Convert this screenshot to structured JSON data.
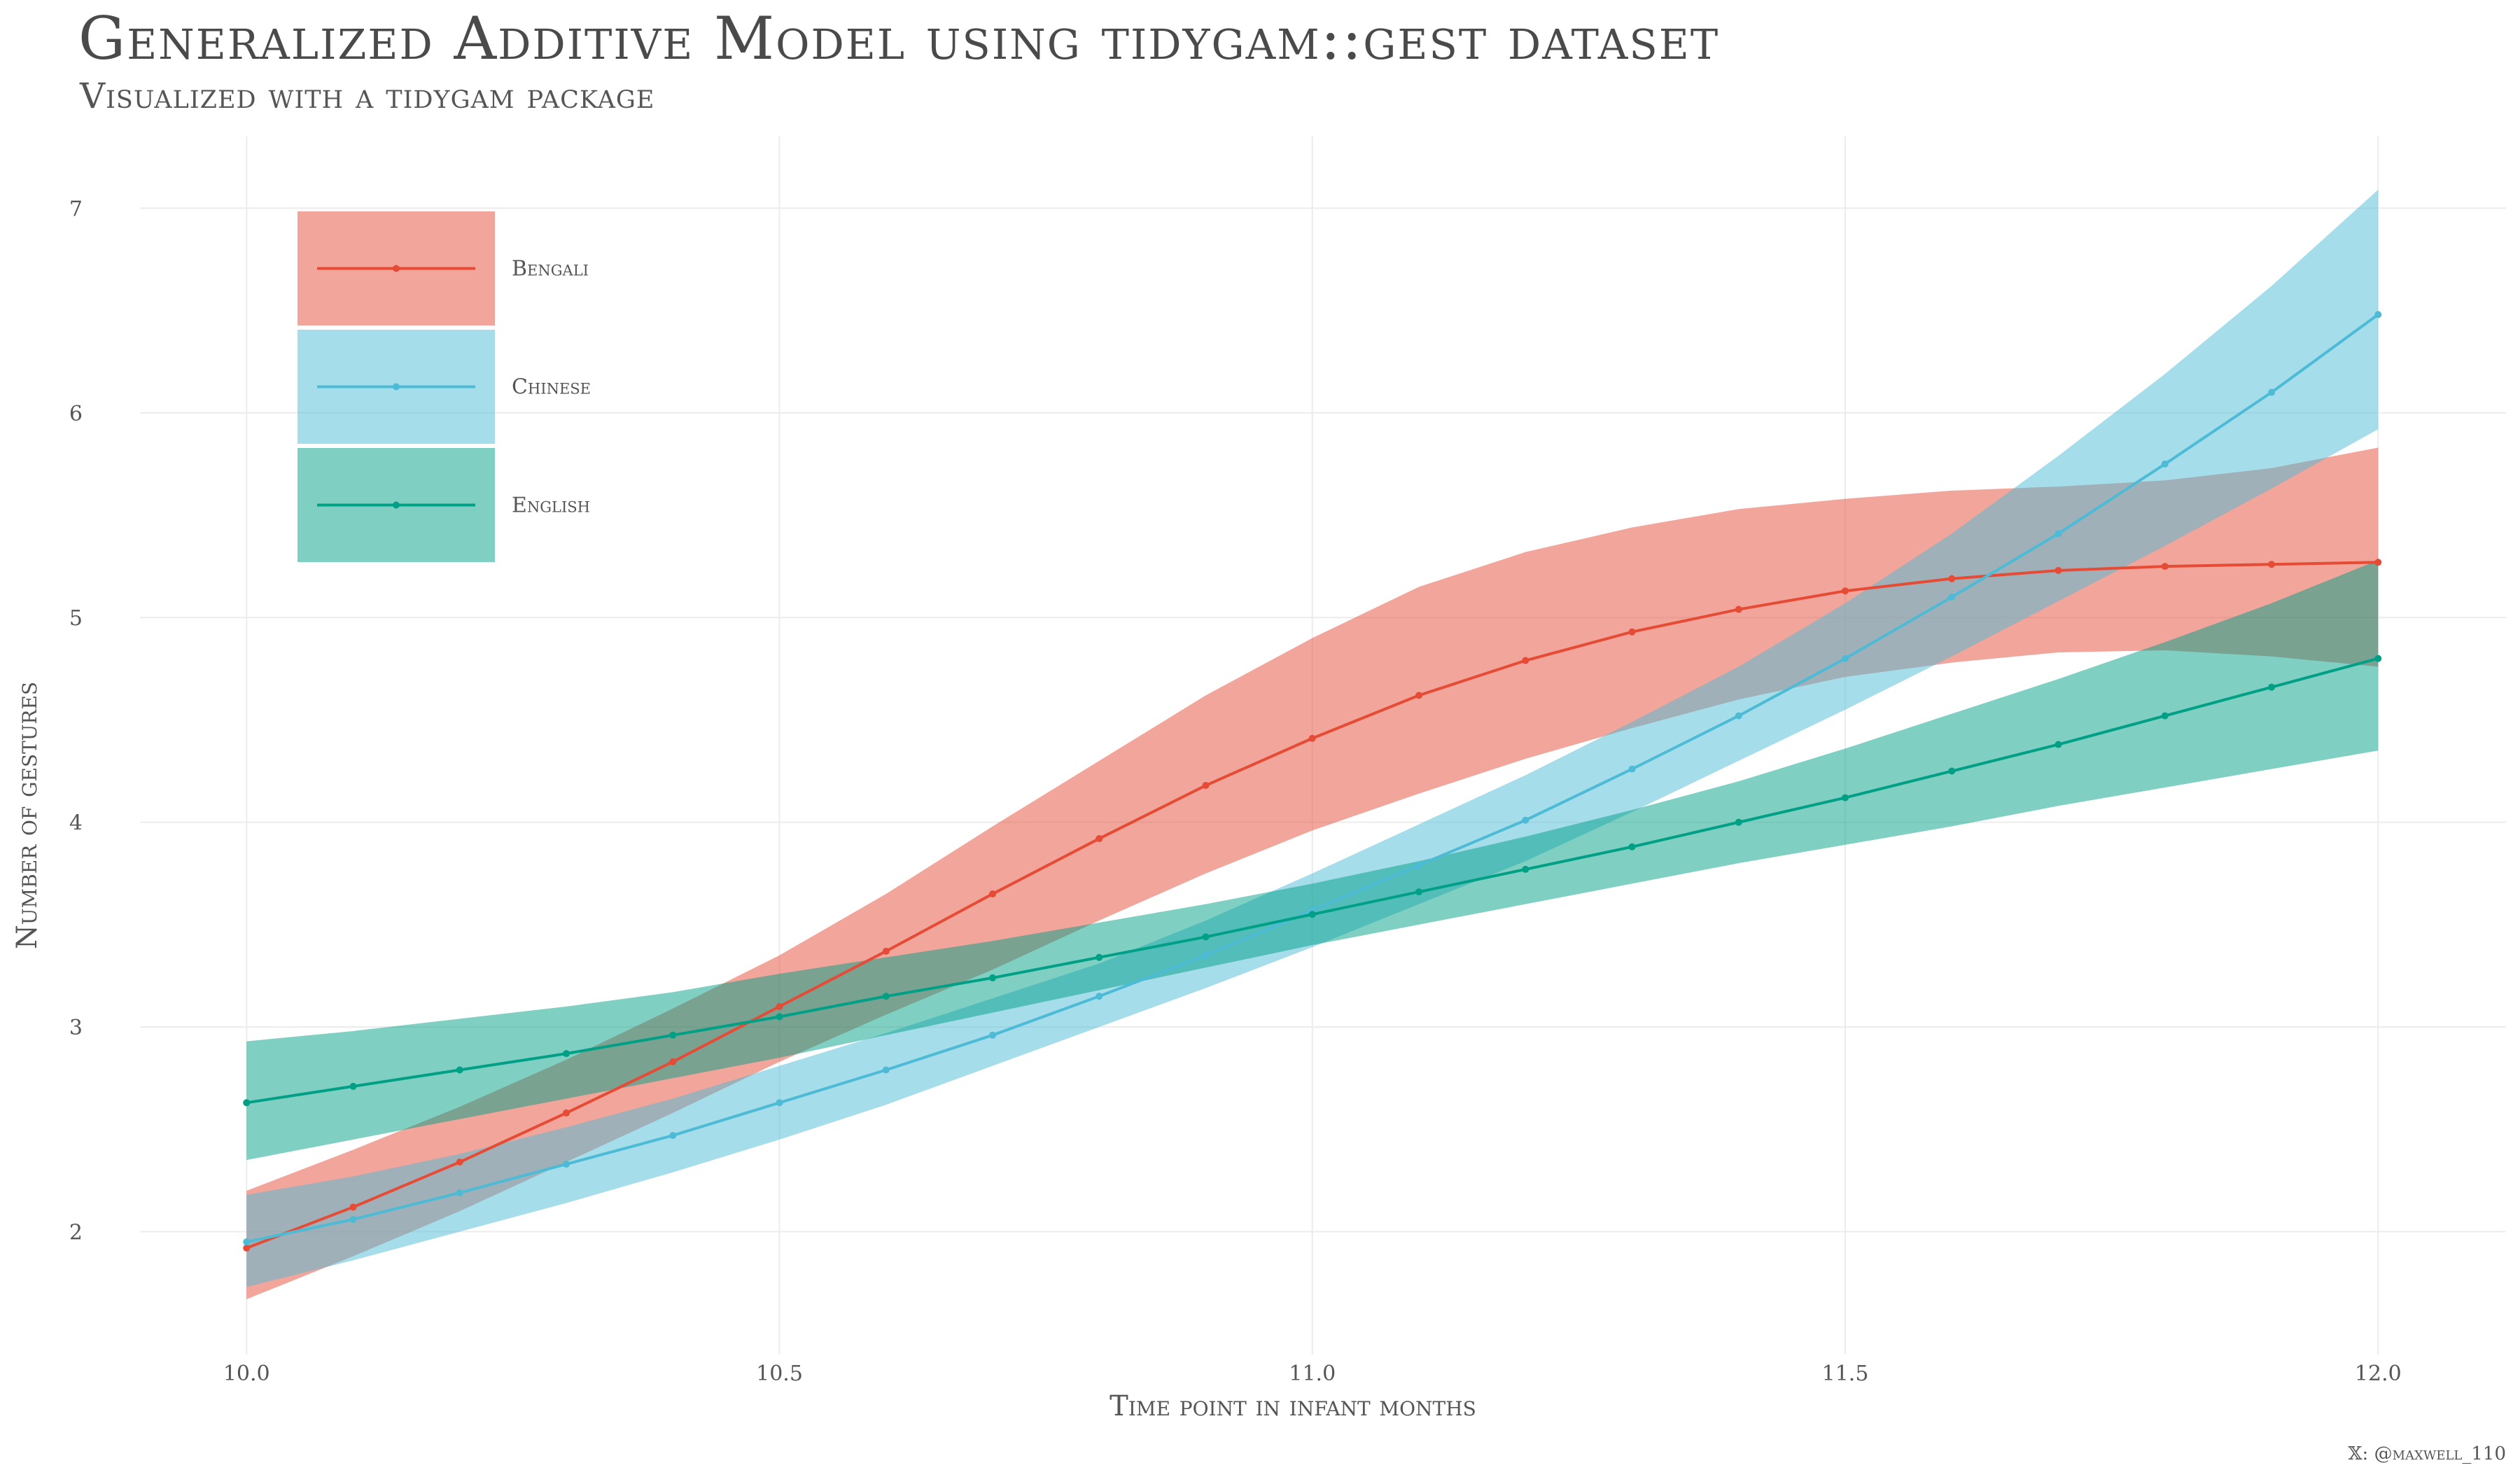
{
  "title": "Generalized Additive Model using tidygam::gest dataset",
  "subtitle": "Visualized with a tidygam package",
  "caption": "𝕏: @maxwell_110",
  "chart_data": {
    "type": "line",
    "xlabel": "Time point in infant months",
    "ylabel": "Number of gestures",
    "xlim": [
      9.9,
      12.12
    ],
    "ylim": [
      1.4,
      7.35
    ],
    "x_ticks": [
      10.0,
      10.5,
      11.0,
      11.5,
      12.0
    ],
    "x_tick_labels": [
      "10.0",
      "10.5",
      "11.0",
      "11.5",
      "12.0"
    ],
    "y_ticks": [
      2,
      3,
      4,
      5,
      6,
      7
    ],
    "y_tick_labels": [
      "2",
      "3",
      "4",
      "5",
      "6",
      "7"
    ],
    "grid": true,
    "legend_position": "top-left",
    "x": [
      10.0,
      10.1,
      10.2,
      10.3,
      10.4,
      10.5,
      10.6,
      10.7,
      10.8,
      10.9,
      11.0,
      11.1,
      11.2,
      11.3,
      11.4,
      11.5,
      11.6,
      11.7,
      11.8,
      11.9,
      12.0
    ],
    "series": [
      {
        "name": "Bengali",
        "color": "#E64B35",
        "fill": "#F0A398",
        "values": [
          1.92,
          2.12,
          2.34,
          2.58,
          2.83,
          3.1,
          3.37,
          3.65,
          3.92,
          4.18,
          4.41,
          4.62,
          4.79,
          4.93,
          5.04,
          5.13,
          5.19,
          5.23,
          5.25,
          5.26,
          5.27
        ],
        "lower": [
          1.67,
          1.88,
          2.1,
          2.34,
          2.58,
          2.83,
          3.06,
          3.28,
          3.52,
          3.75,
          3.96,
          4.14,
          4.31,
          4.46,
          4.6,
          4.71,
          4.78,
          4.83,
          4.84,
          4.81,
          4.76
        ],
        "upper": [
          2.2,
          2.4,
          2.61,
          2.84,
          3.09,
          3.35,
          3.65,
          3.98,
          4.3,
          4.62,
          4.9,
          5.15,
          5.32,
          5.44,
          5.53,
          5.58,
          5.62,
          5.64,
          5.67,
          5.73,
          5.83
        ]
      },
      {
        "name": "Chinese",
        "color": "#4DBBD5",
        "fill": "#A5DCEA",
        "values": [
          1.95,
          2.06,
          2.19,
          2.33,
          2.47,
          2.63,
          2.79,
          2.96,
          3.15,
          3.35,
          3.57,
          3.79,
          4.01,
          4.26,
          4.52,
          4.8,
          5.1,
          5.41,
          5.75,
          6.1,
          6.48
        ],
        "lower": [
          1.73,
          1.86,
          2.0,
          2.14,
          2.29,
          2.45,
          2.62,
          2.81,
          3.0,
          3.19,
          3.39,
          3.6,
          3.81,
          4.05,
          4.3,
          4.55,
          4.81,
          5.08,
          5.35,
          5.63,
          5.92
        ],
        "upper": [
          2.18,
          2.27,
          2.38,
          2.51,
          2.65,
          2.81,
          2.97,
          3.14,
          3.31,
          3.52,
          3.75,
          3.99,
          4.23,
          4.49,
          4.76,
          5.07,
          5.41,
          5.79,
          6.19,
          6.62,
          7.09
        ]
      },
      {
        "name": "English",
        "color": "#00A087",
        "fill": "#80D0C3",
        "values": [
          2.63,
          2.71,
          2.79,
          2.87,
          2.96,
          3.05,
          3.15,
          3.24,
          3.34,
          3.44,
          3.55,
          3.66,
          3.77,
          3.88,
          4.0,
          4.12,
          4.25,
          4.38,
          4.52,
          4.66,
          4.8
        ],
        "lower": [
          2.35,
          2.45,
          2.55,
          2.65,
          2.75,
          2.85,
          2.96,
          3.07,
          3.18,
          3.29,
          3.4,
          3.5,
          3.6,
          3.7,
          3.8,
          3.89,
          3.98,
          4.08,
          4.17,
          4.26,
          4.35
        ],
        "upper": [
          2.93,
          2.98,
          3.04,
          3.1,
          3.17,
          3.26,
          3.34,
          3.42,
          3.51,
          3.6,
          3.7,
          3.81,
          3.93,
          4.06,
          4.2,
          4.36,
          4.53,
          4.7,
          4.88,
          5.07,
          5.28
        ]
      }
    ]
  }
}
